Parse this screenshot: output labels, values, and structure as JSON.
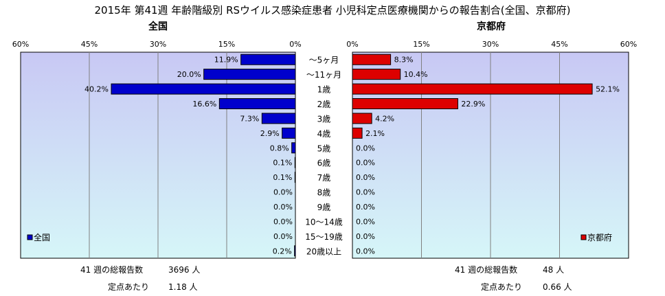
{
  "chart_data": {
    "type": "bar",
    "title": "2015年 第41週 年齢階級別 RSウイルス感染症患者 小児科定点医療機関からの報告割合(全国、京都府)",
    "categories": [
      "～5ヶ月",
      "～11ヶ月",
      "1歳",
      "2歳",
      "3歳",
      "4歳",
      "5歳",
      "6歳",
      "7歳",
      "8歳",
      "9歳",
      "10～14歳",
      "15～19歳",
      "20歳以上"
    ],
    "panels": [
      {
        "panel_title": "全国",
        "legend": "全国",
        "color": "#0000cc",
        "direction": "left",
        "xlim": [
          0,
          60
        ],
        "ticks": [
          "60%",
          "45%",
          "30%",
          "15%",
          "0%"
        ],
        "values": [
          11.9,
          20.0,
          40.2,
          16.6,
          7.3,
          2.9,
          0.8,
          0.1,
          0.1,
          0.0,
          0.0,
          0.0,
          0.0,
          0.2
        ],
        "labels": [
          "11.9%",
          "20.0%",
          "40.2%",
          "16.6%",
          "7.3%",
          "2.9%",
          "0.8%",
          "0.1%",
          "0.1%",
          "0.0%",
          "0.0%",
          "0.0%",
          "0.0%",
          "0.2%"
        ]
      },
      {
        "panel_title": "京都府",
        "legend": "京都府",
        "color": "#dd0000",
        "direction": "right",
        "xlim": [
          0,
          60
        ],
        "ticks": [
          "0%",
          "15%",
          "30%",
          "45%",
          "60%"
        ],
        "values": [
          8.3,
          10.4,
          52.1,
          22.9,
          4.2,
          2.1,
          0.0,
          0.0,
          0.0,
          0.0,
          0.0,
          0.0,
          0.0,
          0.0
        ],
        "labels": [
          "8.3%",
          "10.4%",
          "52.1%",
          "22.9%",
          "4.2%",
          "2.1%",
          "0.0%",
          "0.0%",
          "0.0%",
          "0.0%",
          "0.0%",
          "0.0%",
          "0.0%",
          "0.0%"
        ]
      }
    ]
  },
  "footer": {
    "left": {
      "total_label": "41 週の総報告数",
      "total_value": "3696 人",
      "per_label": "定点あたり",
      "per_value": "1.18 人"
    },
    "right": {
      "total_label": "41 週の総報告数",
      "total_value": "48 人",
      "per_label": "定点あたり",
      "per_value": "0.66 人"
    }
  }
}
